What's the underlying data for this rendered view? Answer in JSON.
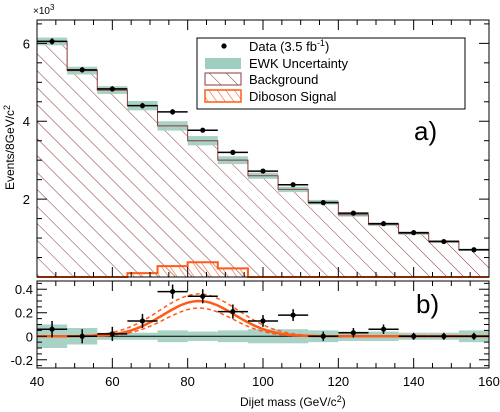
{
  "chart_data": [
    {
      "type": "bar",
      "panel_label": "a)",
      "ylabel": "Events/8GeV/c",
      "ylabel_sup": "2",
      "y_multiplier": "×10",
      "y_multiplier_exp": "3",
      "xlim": [
        40,
        160
      ],
      "ylim": [
        0,
        6.6
      ],
      "x_edges": [
        40,
        48,
        56,
        64,
        72,
        80,
        88,
        96,
        104,
        112,
        120,
        128,
        136,
        144,
        152,
        160
      ],
      "background": [
        6.05,
        5.3,
        4.8,
        4.4,
        3.88,
        3.5,
        3.0,
        2.6,
        2.25,
        1.92,
        1.6,
        1.35,
        1.12,
        0.92,
        0.7
      ],
      "ewk_uncertainty": [
        0.1,
        0.1,
        0.1,
        0.12,
        0.12,
        0.12,
        0.1,
        0.08,
        0.07,
        0.06,
        0.05,
        0.04,
        0.04,
        0.03,
        0.03
      ],
      "diboson_signal": [
        0.0,
        0.0,
        0.0,
        0.1,
        0.28,
        0.38,
        0.22,
        0.0,
        0.0,
        0.0,
        0.0,
        0.0,
        0.0,
        0.0,
        0.0
      ],
      "data": {
        "x": [
          44,
          52,
          60,
          68,
          76,
          84,
          92,
          100,
          108,
          116,
          124,
          132,
          140,
          148,
          156
        ],
        "y": [
          6.05,
          5.32,
          4.83,
          4.4,
          4.24,
          3.77,
          3.2,
          2.72,
          2.37,
          1.91,
          1.64,
          1.37,
          1.14,
          0.91,
          0.7
        ],
        "yerr": [
          0.08,
          0.07,
          0.07,
          0.07,
          0.07,
          0.06,
          0.06,
          0.05,
          0.05,
          0.04,
          0.04,
          0.04,
          0.03,
          0.03,
          0.03
        ]
      },
      "legend": {
        "placement": "top-right",
        "entries": [
          {
            "label": "Data (3.5 fb",
            "sup": "-1",
            "label_end": ")",
            "kind": "data"
          },
          {
            "label": "EWK Uncertainty",
            "kind": "ewk"
          },
          {
            "label": "Background",
            "kind": "background"
          },
          {
            "label": "Diboson Signal",
            "kind": "signal"
          }
        ]
      },
      "y_ticks": [
        2,
        4,
        6
      ]
    },
    {
      "type": "line",
      "panel_label": "b)",
      "xlabel": "Dijet mass (GeV/c",
      "xlabel_sup": "2",
      "xlabel_end": ")",
      "xlim": [
        40,
        160
      ],
      "ylim": [
        -0.27,
        0.47
      ],
      "x_ticks": [
        40,
        60,
        80,
        100,
        120,
        140,
        160
      ],
      "y_ticks": [
        -0.2,
        0,
        0.2,
        0.4
      ],
      "residual_data": {
        "x": [
          44,
          52,
          60,
          68,
          76,
          84,
          92,
          100,
          108,
          116,
          124,
          132,
          140,
          148,
          156
        ],
        "y": [
          0.06,
          0.0,
          0.02,
          0.13,
          0.38,
          0.34,
          0.21,
          0.13,
          0.18,
          0.0,
          0.03,
          0.06,
          0.0,
          0.0,
          0.0
        ],
        "yerr": [
          0.07,
          0.06,
          0.06,
          0.06,
          0.06,
          0.06,
          0.06,
          0.05,
          0.05,
          0.04,
          0.04,
          0.04,
          0.03,
          0.03,
          0.03
        ]
      },
      "ewk_band": [
        0.1,
        0.07,
        0.03,
        0.03,
        0.05,
        0.04,
        0.05,
        0.06,
        0.06,
        0.05,
        0.04,
        0.04,
        0.03,
        0.03,
        0.05
      ],
      "signal_fit": {
        "amplitude": 0.3,
        "mean": 83,
        "sigma": 9.5
      },
      "signal_fit_upper": {
        "amplitude": 0.36,
        "mean": 83,
        "sigma": 10.5
      },
      "signal_fit_lower": {
        "amplitude": 0.24,
        "mean": 83,
        "sigma": 9.0
      }
    }
  ],
  "colors": {
    "ewk": "#9fcdbf",
    "background_hatch": "#8a3a3a",
    "signal": "#ff5a1a",
    "data": "#000000"
  }
}
